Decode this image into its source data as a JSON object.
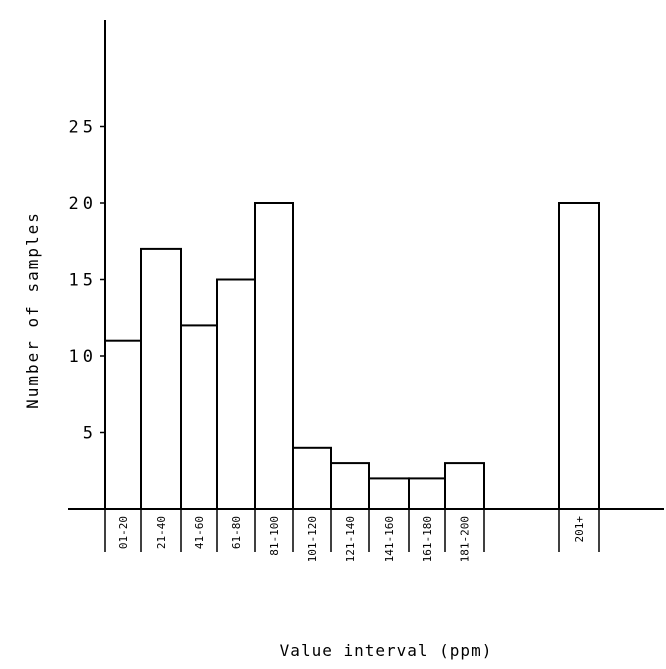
{
  "chart_data": {
    "type": "bar",
    "title": "",
    "xlabel": "Value interval (ppm)",
    "ylabel": "Number of samples",
    "categories": [
      "01-20",
      "21-40",
      "41-60",
      "61-80",
      "81-100",
      "101-120",
      "121-140",
      "141-160",
      "161-180",
      "181-200",
      "201+"
    ],
    "values": [
      11,
      17,
      12,
      15,
      20,
      4,
      3,
      2,
      2,
      3,
      20
    ],
    "yticks": [
      5,
      10,
      15,
      20,
      25
    ],
    "ylim": [
      0,
      32
    ],
    "grid": false,
    "colors": {
      "line": "#000000",
      "background": "#ffffff"
    }
  }
}
